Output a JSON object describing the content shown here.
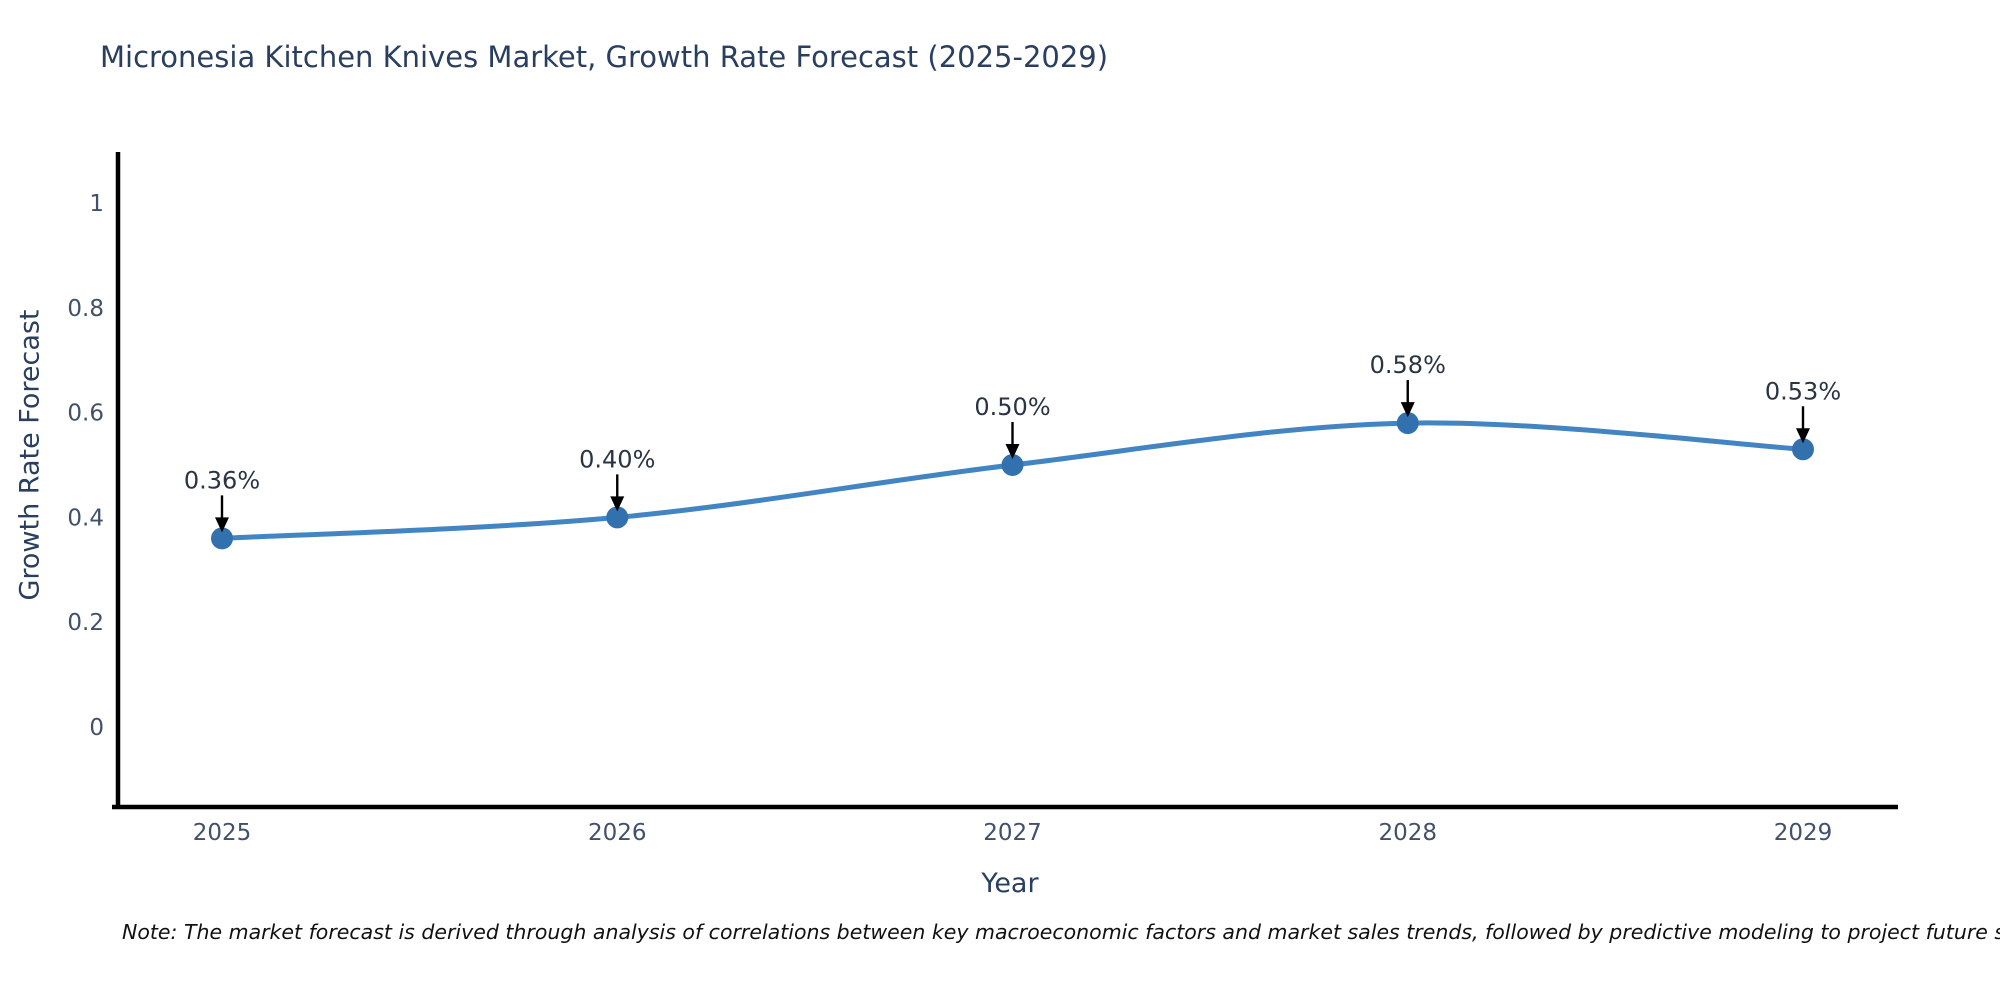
{
  "page": {
    "background": "#ffffff"
  },
  "chart_data": {
    "type": "line",
    "title": "Micronesia Kitchen Knives Market, Growth Rate Forecast (2025-2029)",
    "xlabel": "Year",
    "ylabel": "Growth Rate Forecast",
    "categories": [
      "2025",
      "2026",
      "2027",
      "2028",
      "2029"
    ],
    "series": [
      {
        "name": "Growth Rate Forecast",
        "values": [
          0.36,
          0.4,
          0.5,
          0.58,
          0.53
        ]
      }
    ],
    "point_labels": [
      "0.36%",
      "0.40%",
      "0.50%",
      "0.58%",
      "0.53%"
    ],
    "yticks": [
      0,
      0.2,
      0.4,
      0.6,
      0.8,
      1
    ],
    "ylim": [
      -0.16,
      1.1
    ],
    "grid": false,
    "legend": "none",
    "smooth": true,
    "colors": {
      "line": "#4285c2",
      "marker": "#3371ae",
      "axis": "#000000",
      "tick_label": "#42506a",
      "annotation_text": "#2a3442",
      "annotation_arrow": "#000000",
      "title_text": "#2a3f5f"
    },
    "note": "Note: The market forecast is derived through analysis of correlations between key macroeconomic factors and market sales trends, followed by predictive modeling to project future sales"
  }
}
